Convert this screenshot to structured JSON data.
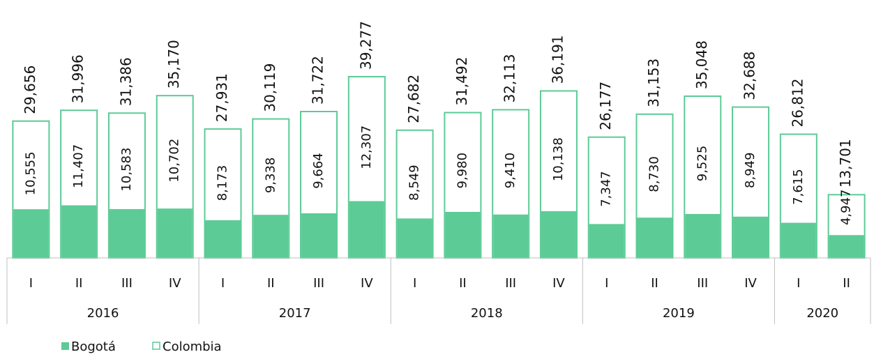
{
  "chart_data": {
    "type": "bar",
    "overlap": true,
    "groups": [
      {
        "name": "2016",
        "categories": [
          "I",
          "II",
          "III",
          "IV"
        ]
      },
      {
        "name": "2017",
        "categories": [
          "I",
          "II",
          "III",
          "IV"
        ]
      },
      {
        "name": "2018",
        "categories": [
          "I",
          "II",
          "III",
          "IV"
        ]
      },
      {
        "name": "2019",
        "categories": [
          "I",
          "II",
          "III",
          "IV"
        ]
      },
      {
        "name": "2020",
        "categories": [
          "I",
          "II"
        ]
      }
    ],
    "series": [
      {
        "name": "Colombia",
        "color": "#5ccb96",
        "fill": "none",
        "values": [
          29656,
          31996,
          31386,
          35170,
          27931,
          30119,
          31722,
          39277,
          27682,
          31492,
          32113,
          36191,
          26177,
          31153,
          35048,
          32688,
          26812,
          13701
        ],
        "value_labels": [
          "29,656",
          "31,996",
          "31,386",
          "35,170",
          "27,931",
          "30,119",
          "31,722",
          "39,277",
          "27,682",
          "31,492",
          "32,113",
          "36,191",
          "26,177",
          "31,153",
          "35,048",
          "32,688",
          "26,812",
          "13,701"
        ]
      },
      {
        "name": "Bogotá",
        "color": "#5ccb96",
        "fill": "solid",
        "values": [
          10555,
          11407,
          10583,
          10702,
          8173,
          9338,
          9664,
          12307,
          8549,
          9980,
          9410,
          10138,
          7347,
          8730,
          9525,
          8949,
          7615,
          4947
        ],
        "value_labels": [
          "10,555",
          "11,407",
          "10,583",
          "10,702",
          "8,173",
          "9,338",
          "9,664",
          "12,307",
          "8,549",
          "9,980",
          "9,410",
          "10,138",
          "7,347",
          "8,730",
          "9,525",
          "8,949",
          "7,615",
          "4,947"
        ]
      }
    ]
  }
}
